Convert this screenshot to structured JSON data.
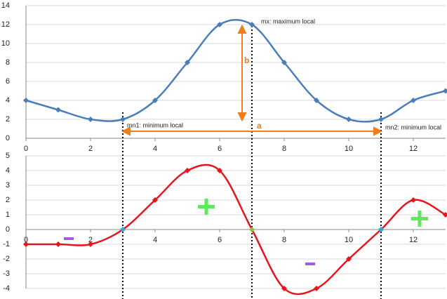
{
  "chart_data": [
    {
      "type": "line",
      "x": [
        0,
        1,
        2,
        3,
        4,
        5,
        6,
        7,
        8,
        9,
        10,
        11,
        12,
        13
      ],
      "series": [
        {
          "color": "#4a7ebb",
          "values": [
            4,
            3,
            2,
            2,
            4,
            8,
            12,
            12,
            8,
            4,
            2,
            2,
            4,
            5
          ]
        }
      ],
      "xlim": [
        0,
        13
      ],
      "xticks": [
        0,
        2,
        4,
        6,
        8,
        10,
        12
      ],
      "ylim": [
        0,
        14
      ],
      "yticks": [
        0,
        2,
        4,
        6,
        8,
        10,
        12,
        14
      ],
      "grid": true,
      "smooth": true,
      "annotations": [
        "mx: maximum local",
        "mn1: minimum local",
        "mn2: minimum local",
        "a",
        "b"
      ]
    },
    {
      "type": "line",
      "x": [
        0,
        1,
        2,
        3,
        4,
        5,
        6,
        7,
        8,
        9,
        10,
        11,
        12,
        13
      ],
      "series": [
        {
          "color": "#e8141c",
          "values": [
            -1,
            -1,
            -1,
            0,
            2,
            4,
            4,
            0,
            -4,
            -4,
            -2,
            0,
            2,
            1
          ],
          "marker_colors": [
            "#e8141c",
            "#e8141c",
            "#e8141c",
            "#28a8e0",
            "#e8141c",
            "#e8141c",
            "#e8141c",
            "#8fbf3c",
            "#e8141c",
            "#e8141c",
            "#e8141c",
            "#28a8e0",
            "#e8141c",
            "#e8141c"
          ]
        }
      ],
      "xlim": [
        0,
        13
      ],
      "xticks": [
        0,
        2,
        4,
        6,
        8,
        10,
        12
      ],
      "ylim": [
        -4,
        5
      ],
      "yticks": [
        -4,
        -3,
        -2,
        -1,
        0,
        1,
        2,
        3,
        4,
        5
      ],
      "grid": true,
      "smooth": true
    }
  ]
}
